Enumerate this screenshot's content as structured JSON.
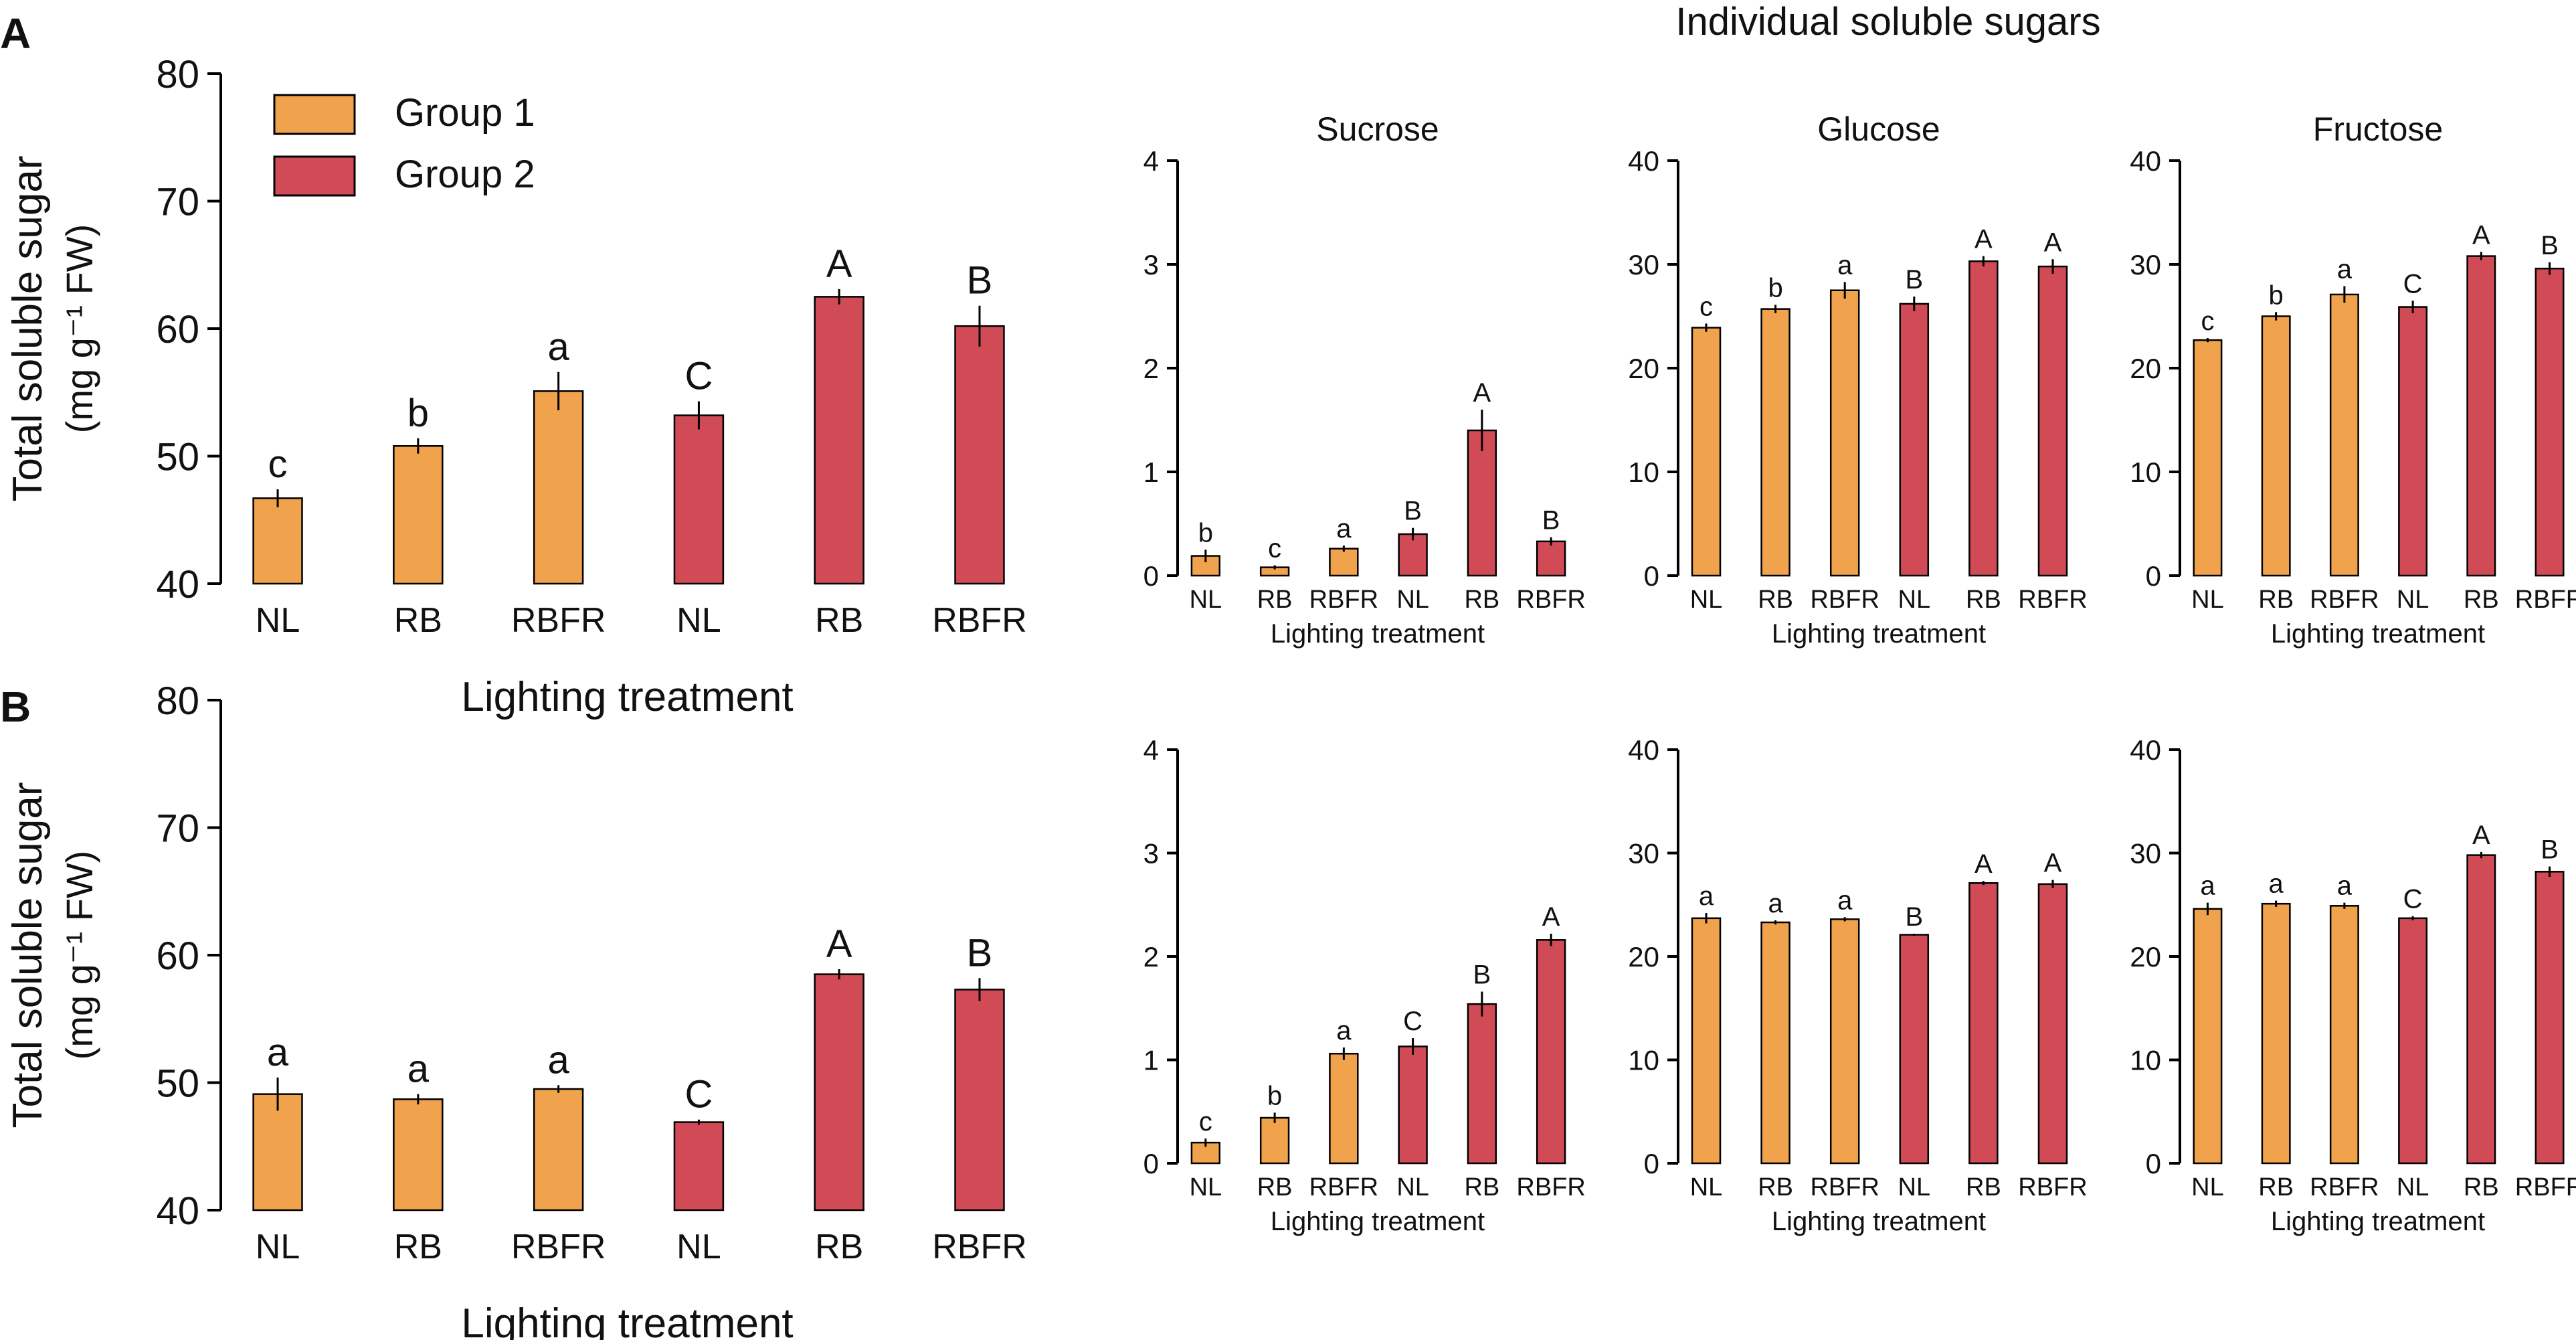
{
  "figure": {
    "panel_labels": [
      "A",
      "B"
    ],
    "group_title": "Individual soluble sugars",
    "legend": [
      {
        "label": "Group 1",
        "color": "#F0A24D"
      },
      {
        "label": "Group 2",
        "color": "#D14B57"
      }
    ]
  },
  "colors": {
    "group1": "#F0A24D",
    "group2": "#D14B57",
    "axis": "#000000",
    "error_bar": "#000000"
  },
  "chart_data": [
    {
      "id": "A_total",
      "panel": "A",
      "type": "bar",
      "title": "",
      "categories": [
        "NL",
        "RB",
        "RBFR",
        "NL",
        "RB",
        "RBFR"
      ],
      "groups": [
        "Group 1",
        "Group 1",
        "Group 1",
        "Group 2",
        "Group 2",
        "Group 2"
      ],
      "values": [
        46.7,
        50.8,
        55.1,
        53.2,
        62.5,
        60.2
      ],
      "errors": [
        0.7,
        0.6,
        1.5,
        1.1,
        0.6,
        1.6
      ],
      "letters": [
        "c",
        "b",
        "a",
        "C",
        "A",
        "B"
      ],
      "ylim": [
        40,
        80
      ],
      "yticks": [
        40,
        50,
        60,
        70,
        80
      ],
      "ylabel": "Total soluble sugar",
      "ylabel_unit": "(mg g⁻¹ FW)",
      "xlabel": "Lighting treatment"
    },
    {
      "id": "A_sucrose",
      "panel": "A",
      "type": "bar",
      "title": "Sucrose",
      "categories": [
        "NL",
        "RB",
        "RBFR",
        "NL",
        "RB",
        "RBFR"
      ],
      "groups": [
        "Group 1",
        "Group 1",
        "Group 1",
        "Group 2",
        "Group 2",
        "Group 2"
      ],
      "values": [
        0.19,
        0.08,
        0.26,
        0.4,
        1.4,
        0.33
      ],
      "errors": [
        0.06,
        0.02,
        0.03,
        0.06,
        0.2,
        0.04
      ],
      "letters": [
        "b",
        "c",
        "a",
        "B",
        "A",
        "B"
      ],
      "ylim": [
        0,
        4
      ],
      "yticks": [
        0,
        1,
        2,
        3,
        4
      ],
      "xlabel": "Lighting treatment"
    },
    {
      "id": "A_glucose",
      "panel": "A",
      "type": "bar",
      "title": "Glucose",
      "categories": [
        "NL",
        "RB",
        "RBFR",
        "NL",
        "RB",
        "RBFR"
      ],
      "groups": [
        "Group 1",
        "Group 1",
        "Group 1",
        "Group 2",
        "Group 2",
        "Group 2"
      ],
      "values": [
        23.9,
        25.7,
        27.5,
        26.2,
        30.3,
        29.8
      ],
      "errors": [
        0.4,
        0.4,
        0.8,
        0.7,
        0.5,
        0.7
      ],
      "letters": [
        "c",
        "b",
        "a",
        "B",
        "A",
        "A"
      ],
      "ylim": [
        0,
        40
      ],
      "yticks": [
        0,
        10,
        20,
        30,
        40
      ],
      "xlabel": "Lighting treatment"
    },
    {
      "id": "A_fructose",
      "panel": "A",
      "type": "bar",
      "title": "Fructose",
      "categories": [
        "NL",
        "RB",
        "RBFR",
        "NL",
        "RB",
        "RBFR"
      ],
      "groups": [
        "Group 1",
        "Group 1",
        "Group 1",
        "Group 2",
        "Group 2",
        "Group 2"
      ],
      "values": [
        22.7,
        25.0,
        27.1,
        25.9,
        30.8,
        29.6
      ],
      "errors": [
        0.2,
        0.4,
        0.8,
        0.6,
        0.4,
        0.6
      ],
      "letters": [
        "c",
        "b",
        "a",
        "C",
        "A",
        "B"
      ],
      "ylim": [
        0,
        40
      ],
      "yticks": [
        0,
        10,
        20,
        30,
        40
      ],
      "xlabel": "Lighting treatment"
    },
    {
      "id": "B_total",
      "panel": "B",
      "type": "bar",
      "title": "",
      "categories": [
        "NL",
        "RB",
        "RBFR",
        "NL",
        "RB",
        "RBFR"
      ],
      "groups": [
        "Group 1",
        "Group 1",
        "Group 1",
        "Group 2",
        "Group 2",
        "Group 2"
      ],
      "values": [
        49.1,
        48.7,
        49.5,
        46.9,
        58.5,
        57.3
      ],
      "errors": [
        1.3,
        0.4,
        0.3,
        0.2,
        0.4,
        0.9
      ],
      "letters": [
        "a",
        "a",
        "a",
        "C",
        "A",
        "B"
      ],
      "ylim": [
        40,
        80
      ],
      "yticks": [
        40,
        50,
        60,
        70,
        80
      ],
      "ylabel": "Total soluble sugar",
      "ylabel_unit": "(mg g⁻¹ FW)",
      "xlabel": "Lighting treatment"
    },
    {
      "id": "B_sucrose",
      "panel": "B",
      "type": "bar",
      "title": "",
      "categories": [
        "NL",
        "RB",
        "RBFR",
        "NL",
        "RB",
        "RBFR"
      ],
      "groups": [
        "Group 1",
        "Group 1",
        "Group 1",
        "Group 2",
        "Group 2",
        "Group 2"
      ],
      "values": [
        0.2,
        0.44,
        1.06,
        1.13,
        1.54,
        2.16
      ],
      "errors": [
        0.04,
        0.05,
        0.06,
        0.08,
        0.12,
        0.06
      ],
      "letters": [
        "c",
        "b",
        "a",
        "C",
        "B",
        "A"
      ],
      "ylim": [
        0,
        4
      ],
      "yticks": [
        0,
        1,
        2,
        3,
        4
      ],
      "xlabel": "Lighting treatment"
    },
    {
      "id": "B_glucose",
      "panel": "B",
      "type": "bar",
      "title": "",
      "categories": [
        "NL",
        "RB",
        "RBFR",
        "NL",
        "RB",
        "RBFR"
      ],
      "groups": [
        "Group 1",
        "Group 1",
        "Group 1",
        "Group 2",
        "Group 2",
        "Group 2"
      ],
      "values": [
        23.7,
        23.3,
        23.6,
        22.1,
        27.1,
        27.0
      ],
      "errors": [
        0.5,
        0.2,
        0.2,
        0.1,
        0.2,
        0.4
      ],
      "letters": [
        "a",
        "a",
        "a",
        "B",
        "A",
        "A"
      ],
      "ylim": [
        0,
        40
      ],
      "yticks": [
        0,
        10,
        20,
        30,
        40
      ],
      "xlabel": "Lighting treatment"
    },
    {
      "id": "B_fructose",
      "panel": "B",
      "type": "bar",
      "title": "",
      "categories": [
        "NL",
        "RB",
        "RBFR",
        "NL",
        "RB",
        "RBFR"
      ],
      "groups": [
        "Group 1",
        "Group 1",
        "Group 1",
        "Group 2",
        "Group 2",
        "Group 2"
      ],
      "values": [
        24.6,
        25.1,
        24.9,
        23.7,
        29.8,
        28.2
      ],
      "errors": [
        0.6,
        0.3,
        0.3,
        0.2,
        0.3,
        0.5
      ],
      "letters": [
        "a",
        "a",
        "a",
        "C",
        "A",
        "B"
      ],
      "ylim": [
        0,
        40
      ],
      "yticks": [
        0,
        10,
        20,
        30,
        40
      ],
      "xlabel": "Lighting treatment"
    }
  ]
}
